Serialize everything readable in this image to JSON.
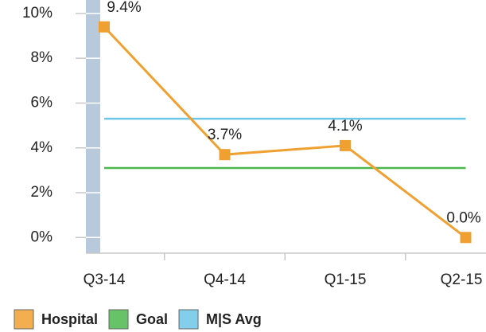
{
  "chart_data": {
    "type": "line",
    "categories": [
      "Q3-14",
      "Q4-14",
      "Q1-15",
      "Q2-15"
    ],
    "series": [
      {
        "name": "Hospital",
        "color": "#f0a030",
        "values": [
          9.4,
          3.7,
          4.1,
          0.0
        ],
        "value_labels": [
          "9.4%",
          "3.7%",
          "4.1%",
          "0.0%"
        ]
      },
      {
        "name": "Goal",
        "color": "#4cb84c",
        "values": [
          3.1,
          3.1,
          3.1,
          3.1
        ]
      },
      {
        "name": "M|S Avg",
        "color": "#6cc6e8",
        "values": [
          5.3,
          5.3,
          5.3,
          5.3
        ]
      }
    ],
    "ylim": [
      -0.7,
      10.6
    ],
    "yticks": [
      {
        "value": 0,
        "label": "0%"
      },
      {
        "value": 2,
        "label": "2%"
      },
      {
        "value": 4,
        "label": "4%"
      },
      {
        "value": 6,
        "label": "6%"
      },
      {
        "value": 8,
        "label": "8%"
      },
      {
        "value": 10,
        "label": "10%"
      }
    ],
    "legend": "bottom"
  }
}
